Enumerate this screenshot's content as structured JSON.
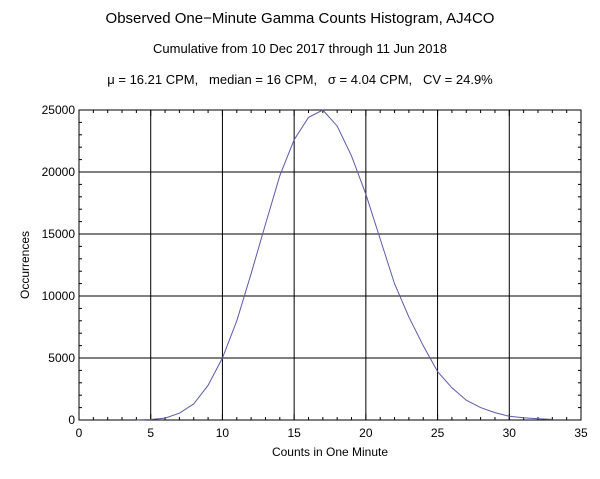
{
  "chart_data": {
    "type": "line",
    "title": "Observed One−Minute Gamma Counts Histogram, AJ4CO",
    "subtitle": "Cumulative from 10 Dec 2017 through 11 Jun 2018",
    "stats_line": "μ = 16.21 CPM,   median = 16 CPM,   σ = 4.04 CPM,   CV = 24.9%",
    "xlabel": "Counts in One Minute",
    "ylabel": "Occurrences",
    "xlim": [
      0,
      35
    ],
    "ylim": [
      0,
      25000
    ],
    "x_ticks": [
      "0",
      "5",
      "10",
      "15",
      "20",
      "25",
      "30",
      "35"
    ],
    "y_ticks": [
      "0",
      "5000",
      "10000",
      "15000",
      "20000",
      "25000"
    ],
    "grid": true,
    "line_color": "#5a5aaa",
    "series": [
      {
        "x": [
          4,
          5,
          6,
          7,
          8,
          9,
          10,
          11,
          12,
          13,
          14,
          15,
          16,
          17,
          18,
          19,
          20,
          21,
          22,
          23,
          24,
          25,
          26,
          27,
          28,
          29,
          30,
          31,
          32,
          33
        ],
        "values": [
          10,
          40,
          150,
          550,
          1300,
          2800,
          5000,
          8000,
          11800,
          15800,
          19700,
          22600,
          24400,
          25000,
          23700,
          21300,
          18200,
          14600,
          11000,
          8300,
          6000,
          3900,
          2600,
          1600,
          1000,
          600,
          300,
          180,
          100,
          50
        ]
      }
    ]
  }
}
